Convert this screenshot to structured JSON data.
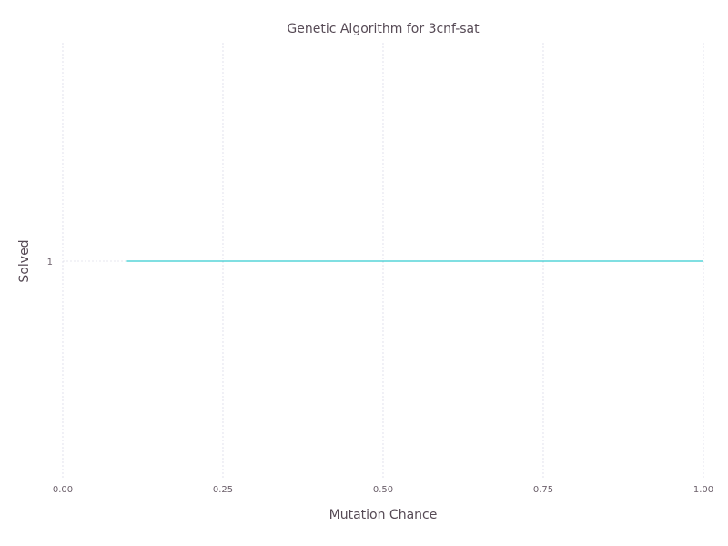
{
  "chart_data": {
    "type": "line",
    "title": "Genetic Algorithm for 3cnf-sat",
    "xlabel": "Mutation Chance",
    "ylabel": "Solved",
    "xlim": [
      0.0,
      1.0
    ],
    "x_ticks": [
      "0.00",
      "0.25",
      "0.50",
      "0.75",
      "1.00"
    ],
    "y_ticks": [
      "1"
    ],
    "grid": true,
    "legend": "none",
    "series": [
      {
        "color": "#00bfc4",
        "x": [
          0.1,
          0.2,
          0.3,
          0.4,
          0.5,
          0.6,
          0.7,
          0.8,
          0.9,
          1.0
        ],
        "y": [
          1,
          1,
          1,
          1,
          1,
          1,
          1,
          1,
          1,
          1
        ]
      }
    ]
  }
}
